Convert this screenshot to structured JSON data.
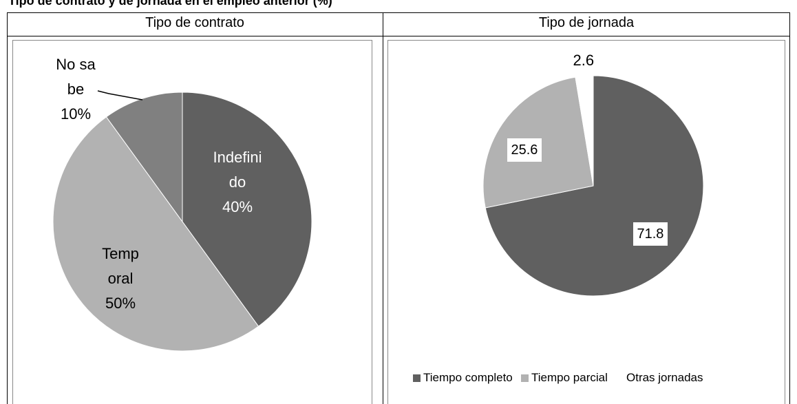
{
  "title": "Tipo de contrato y de jornada en el empleo anterior (%)",
  "chart_data": [
    {
      "type": "pie",
      "title": "Tipo de contrato",
      "categories": [
        "Indefinido",
        "Temporal",
        "No sabe"
      ],
      "values": [
        40,
        50,
        10
      ],
      "value_labels": [
        "40%",
        "50%",
        "10%"
      ],
      "colors": [
        "#606060",
        "#b2b2b2",
        "#808080"
      ],
      "legend": false
    },
    {
      "type": "pie",
      "title": "Tipo de jornada",
      "categories": [
        "Tiempo completo",
        "Tiempo parcial",
        "Otras jornadas"
      ],
      "values": [
        71.8,
        25.6,
        2.6
      ],
      "colors": [
        "#606060",
        "#b2b2b2",
        "#ffffff"
      ],
      "legend": "bottom"
    }
  ]
}
